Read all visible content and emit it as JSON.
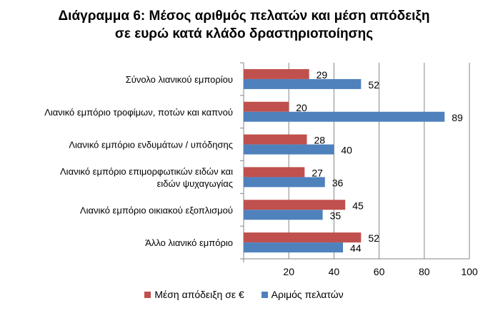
{
  "chart_data": {
    "type": "bar",
    "orientation": "horizontal",
    "title_lines": [
      "Διάγραμμα 6: Μέσος αριθμός πελατών και μέση απόδειξη",
      "σε ευρώ κατά κλάδο δραστηριοποίησης"
    ],
    "categories": [
      [
        "Σύνολο λιανικού εμπορίου"
      ],
      [
        "Λιανικό εμπόριο τροφίμων, ποτών και καπνού"
      ],
      [
        "Λιανικό εμπόριο ενδυμάτων / υπόδησης"
      ],
      [
        "Λιανικό εμπόριο επιμορφωτικών ειδών και",
        "ειδών ψυχαγωγίας"
      ],
      [
        "Λιανικό εμπόριο οικιακού εξοπλισμού"
      ],
      [
        "Άλλο λιανικό εμπόριο"
      ]
    ],
    "series": [
      {
        "name": "Μέση απόδειξη σε €",
        "color": "#C0504D",
        "values": [
          29,
          20,
          28,
          27,
          45,
          52
        ]
      },
      {
        "name": "Αριμός πελατών",
        "color": "#4F81BD",
        "values": [
          52,
          89,
          40,
          36,
          35,
          44
        ]
      }
    ],
    "xlim": [
      0,
      100
    ],
    "xticks": [
      0,
      20,
      40,
      60,
      80,
      100
    ],
    "tick_labels": [
      "",
      "20",
      "40",
      "60",
      "80",
      "100"
    ],
    "grid": "vertical",
    "legend_position": "bottom"
  }
}
